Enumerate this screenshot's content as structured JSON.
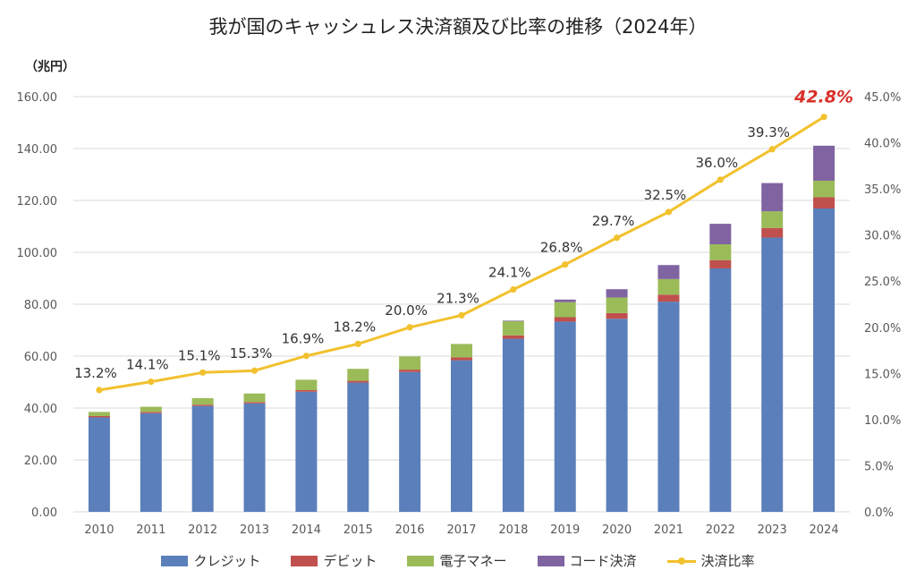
{
  "title": "我が国のキャッシュレス決済額及び比率の推移（2024年）",
  "y_unit_label": "（兆円）",
  "colors": {
    "credit": "#5b7fbb",
    "debit": "#c0504d",
    "emoney": "#9bbb59",
    "code": "#8064a2",
    "ratio": "#f2c12e",
    "highlight": "#d9302a",
    "grid": "#d9d9d9",
    "axis_text": "#595959"
  },
  "legend": [
    {
      "key": "credit",
      "label": "クレジット",
      "kind": "bar"
    },
    {
      "key": "debit",
      "label": "デビット",
      "kind": "bar"
    },
    {
      "key": "emoney",
      "label": "電子マネー",
      "kind": "bar"
    },
    {
      "key": "code",
      "label": "コード決済",
      "kind": "bar"
    },
    {
      "key": "ratio",
      "label": "決済比率",
      "kind": "line"
    }
  ],
  "chart_data": {
    "type": "bar",
    "stacked": true,
    "categories": [
      "2010",
      "2011",
      "2012",
      "2013",
      "2014",
      "2015",
      "2016",
      "2017",
      "2018",
      "2019",
      "2020",
      "2021",
      "2022",
      "2023",
      "2024"
    ],
    "series": [
      {
        "name": "クレジット",
        "key": "credit",
        "values": [
          36.4,
          38.0,
          40.8,
          41.8,
          46.3,
          49.8,
          53.9,
          58.4,
          66.7,
          73.3,
          74.4,
          81.0,
          93.8,
          105.7,
          116.9
        ]
      },
      {
        "name": "デビット",
        "key": "debit",
        "values": [
          0.5,
          0.5,
          0.5,
          0.5,
          0.6,
          0.7,
          0.9,
          1.1,
          1.3,
          1.7,
          2.2,
          2.7,
          3.2,
          3.7,
          4.3
        ]
      },
      {
        "name": "電子マネー",
        "key": "emoney",
        "values": [
          1.6,
          2.0,
          2.5,
          3.3,
          4.0,
          4.6,
          5.1,
          5.2,
          5.5,
          5.8,
          6.0,
          6.0,
          6.1,
          6.4,
          6.4
        ]
      },
      {
        "name": "コード決済",
        "key": "code",
        "values": [
          0,
          0,
          0,
          0,
          0,
          0,
          0,
          0,
          0.2,
          1.0,
          3.2,
          5.4,
          7.9,
          10.9,
          13.5
        ]
      }
    ],
    "line_series": {
      "name": "決済比率",
      "axis": "right",
      "values": [
        13.2,
        14.1,
        15.1,
        15.3,
        16.9,
        18.2,
        20.0,
        21.3,
        24.1,
        26.8,
        29.7,
        32.5,
        36.0,
        39.3,
        42.8
      ],
      "labels": [
        "13.2%",
        "14.1%",
        "15.1%",
        "15.3%",
        "16.9%",
        "18.2%",
        "20.0%",
        "21.3%",
        "24.1%",
        "26.8%",
        "29.7%",
        "32.5%",
        "36.0%",
        "39.3%",
        "42.8%"
      ],
      "highlight_last": true
    },
    "y_left": {
      "min": 0,
      "max": 160,
      "ticks": [
        "0.00",
        "20.00",
        "40.00",
        "60.00",
        "80.00",
        "100.00",
        "120.00",
        "140.00",
        "160.00"
      ]
    },
    "y_right": {
      "min": 0,
      "max": 45,
      "ticks": [
        "0.0%",
        "5.0%",
        "10.0%",
        "15.0%",
        "20.0%",
        "25.0%",
        "30.0%",
        "35.0%",
        "40.0%",
        "45.0%"
      ]
    },
    "grid": true,
    "legend_position": "bottom"
  }
}
